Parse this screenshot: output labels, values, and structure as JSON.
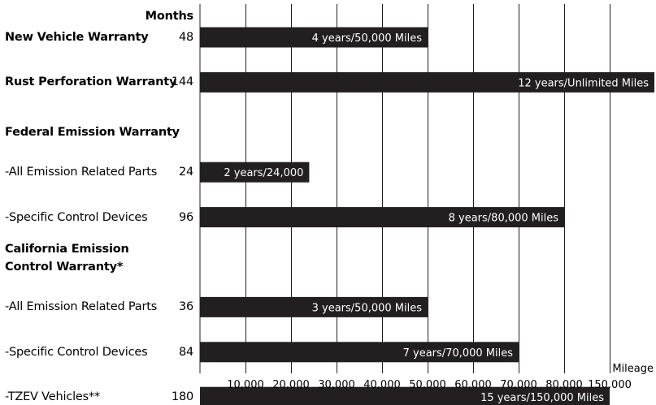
{
  "chart_data": {
    "type": "bar",
    "orientation": "horizontal",
    "months_header": "Months",
    "x_axis_label": "Mileage",
    "x_tick_labels": [
      "10,000",
      "20,000",
      "30,000",
      "40,000",
      "50,000",
      "60,000",
      "70,000",
      "80,000",
      "150,000"
    ],
    "x_tick_values": [
      10000,
      20000,
      30000,
      40000,
      50000,
      60000,
      70000,
      80000,
      150000
    ],
    "grid": true,
    "rows": [
      {
        "label": "New Vehicle Warranty",
        "bold": true,
        "months": "48",
        "bar_label": "4 years/50,000 Miles",
        "mileage": 50000,
        "mileage_text": "50,000"
      },
      {
        "label": "Rust Perforation Warranty",
        "bold": true,
        "months": "144",
        "bar_label": "12 years/Unlimited Miles",
        "mileage": "Unlimited",
        "mileage_text": "Unlimited"
      },
      {
        "group_heading": [
          "Federal Emission Warranty"
        ]
      },
      {
        "label": "-All Emission Related Parts",
        "bold": false,
        "months": "24",
        "bar_label": "2 years/24,000",
        "mileage": 24000,
        "mileage_text": "24,000"
      },
      {
        "label": "-Specific Control Devices",
        "bold": false,
        "months": "96",
        "bar_label": "8 years/80,000 Miles",
        "mileage": 80000,
        "mileage_text": "80,000"
      },
      {
        "group_heading": [
          "California Emission",
          "Control Warranty*"
        ]
      },
      {
        "label": "-All Emission Related Parts",
        "bold": false,
        "months": "36",
        "bar_label": "3 years/50,000 Miles",
        "mileage": 50000,
        "mileage_text": "50,000"
      },
      {
        "label": "-Specific Control Devices",
        "bold": false,
        "months": "84",
        "bar_label": "7 years/70,000 Miles",
        "mileage": 70000,
        "mileage_text": "70,000"
      },
      {
        "label": "-TZEV Vehicles**",
        "bold": false,
        "months": "180",
        "bar_label": "15 years/150,000 Miles",
        "mileage": 150000,
        "mileage_text": "150,000"
      }
    ]
  },
  "colors": {
    "bar": "#231f20",
    "bar_text": "#ffffff",
    "grid": "#231f20",
    "text": "#000000"
  }
}
